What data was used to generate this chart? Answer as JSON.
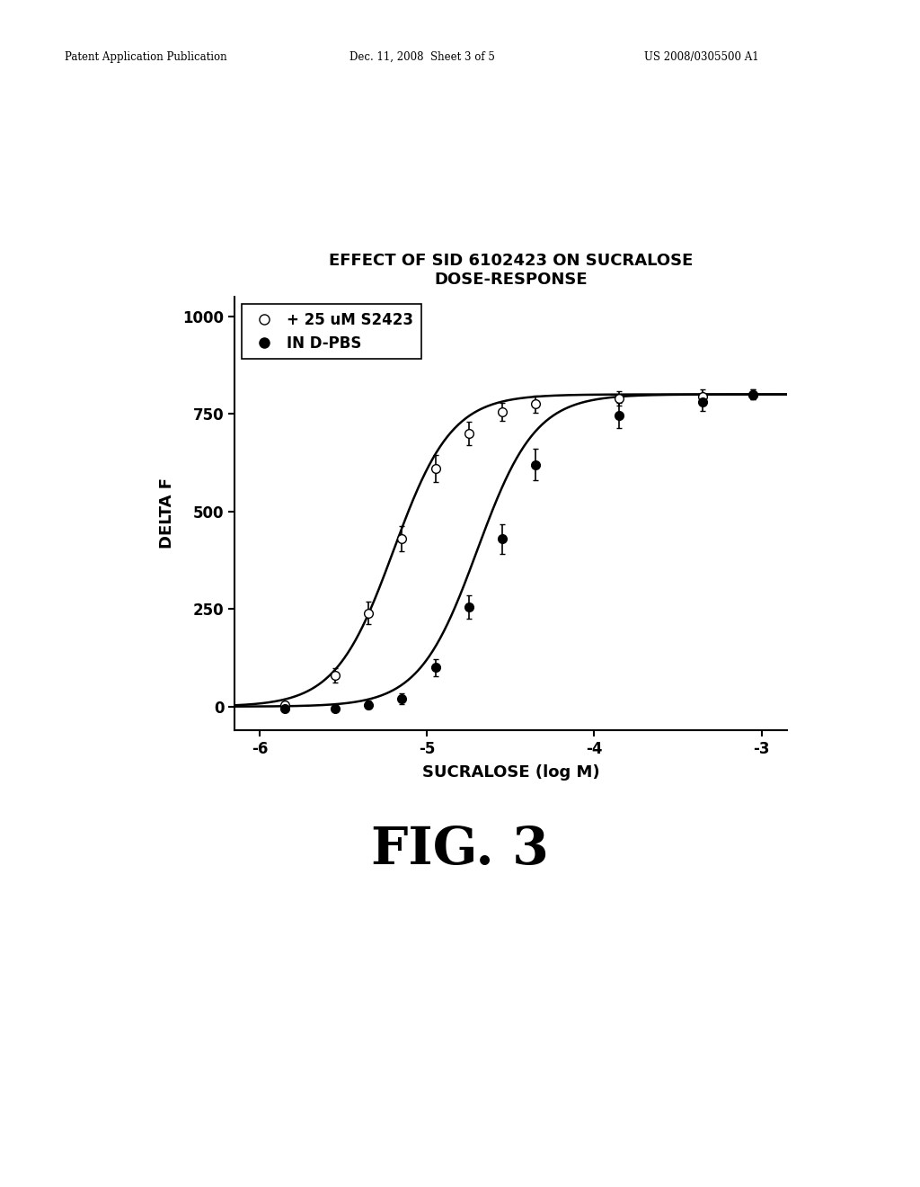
{
  "title_line1": "EFFECT OF SID 6102423 ON SUCRALOSE",
  "title_line2": "DOSE-RESPONSE",
  "xlabel": "SUCRALOSE (log M)",
  "ylabel": "DELTA F",
  "xlim": [
    -6.15,
    -2.85
  ],
  "ylim": [
    -60,
    1050
  ],
  "xticks": [
    -6,
    -5,
    -4,
    -3
  ],
  "yticks": [
    0,
    250,
    500,
    750,
    1000
  ],
  "background_color": "#ffffff",
  "fig_label": "FIG. 3",
  "series": [
    {
      "label": "+ 25 uM S2423",
      "filled": false,
      "ec50_log": -5.2,
      "hill": 2.5,
      "max": 800,
      "x_data": [
        -5.85,
        -5.55,
        -5.35,
        -5.15,
        -4.95,
        -4.75,
        -4.55,
        -4.35,
        -3.85,
        -3.35,
        -3.05
      ],
      "y_data": [
        5,
        80,
        240,
        430,
        610,
        700,
        755,
        775,
        790,
        795,
        800
      ],
      "y_err": [
        8,
        18,
        28,
        32,
        35,
        30,
        22,
        22,
        18,
        18,
        12
      ]
    },
    {
      "label": "IN D-PBS",
      "filled": true,
      "ec50_log": -4.7,
      "hill": 2.5,
      "max": 800,
      "x_data": [
        -5.85,
        -5.55,
        -5.35,
        -5.15,
        -4.95,
        -4.75,
        -4.55,
        -4.35,
        -3.85,
        -3.35,
        -3.05
      ],
      "y_data": [
        -5,
        -5,
        5,
        20,
        100,
        255,
        430,
        620,
        745,
        780,
        800
      ],
      "y_err": [
        8,
        8,
        10,
        14,
        22,
        30,
        38,
        40,
        32,
        22,
        12
      ]
    }
  ]
}
